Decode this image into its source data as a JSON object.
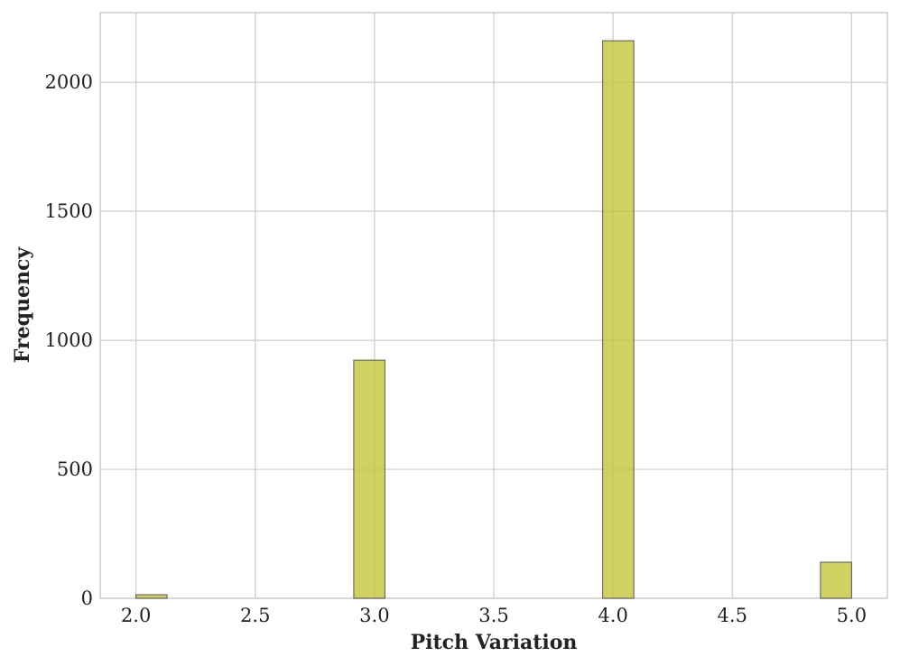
{
  "chart_data": {
    "type": "histogram",
    "x_label": "Pitch Variation",
    "y_label": "Frequency",
    "bins": [
      2.0,
      2.1304,
      2.2609,
      2.3913,
      2.5217,
      2.6522,
      2.7826,
      2.913,
      3.0435,
      3.1739,
      3.3043,
      3.4348,
      3.5652,
      3.6957,
      3.8261,
      3.9565,
      4.087,
      4.2174,
      4.3478,
      4.4783,
      4.6087,
      4.7391,
      4.8696,
      5.0
    ],
    "counts": [
      14,
      0,
      0,
      0,
      0,
      0,
      0,
      923,
      0,
      0,
      0,
      0,
      0,
      0,
      0,
      2161,
      0,
      0,
      0,
      0,
      0,
      0,
      140
    ],
    "color": "#c5c63a",
    "edgecolor": "#555555",
    "xlim": [
      1.85,
      5.15
    ],
    "ylim": [
      0,
      2270
    ],
    "xticks": [
      {
        "value": 2,
        "label": "2.0"
      },
      {
        "value": 2.5,
        "label": "2.5"
      },
      {
        "value": 3,
        "label": "3.0"
      },
      {
        "value": 3.5,
        "label": "3.5"
      },
      {
        "value": 4,
        "label": "4.0"
      },
      {
        "value": 4.5,
        "label": "4.5"
      },
      {
        "value": 5,
        "label": "5.0"
      }
    ],
    "yticks": [
      0,
      500,
      1000,
      1500,
      2000
    ],
    "grid": true
  }
}
